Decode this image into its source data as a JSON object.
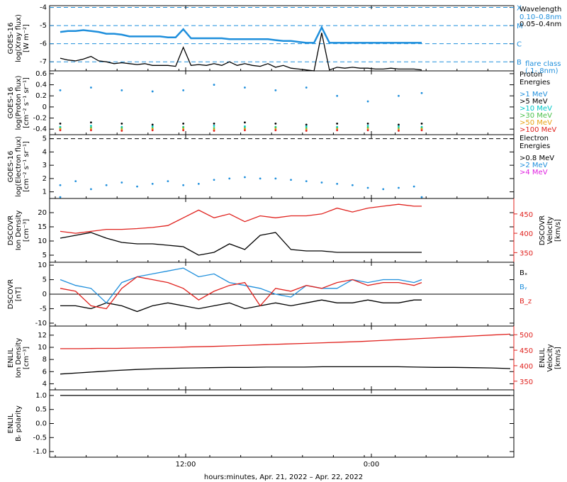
{
  "chart_data": [
    {
      "type": "line",
      "ylabel_lines": [
        "GOES-16",
        "log(Xray flux)",
        "[W m⁻²]"
      ],
      "yticks": [
        -4,
        -5,
        -6,
        -7
      ],
      "ylim": [
        -7.5,
        -3.9
      ],
      "right_axis_labels": [
        {
          "text": "X",
          "y": -4
        },
        {
          "text": "M",
          "y": -5
        },
        {
          "text": "C",
          "y": -6
        },
        {
          "text": "B",
          "y": -7
        }
      ],
      "dashed_levels": [
        -4,
        -5,
        -6,
        -7
      ],
      "legend_title": "Wavelength",
      "legend": [
        {
          "label": "0.10–0.8nm",
          "color": "#1f8fdc"
        },
        {
          "label": "0.05–0.4nm",
          "color": "#000000"
        }
      ],
      "note_lines": [
        "flare class",
        "(.1-.8nm)"
      ],
      "series": [
        {
          "name": "0.10–0.8nm",
          "color": "#1f8fdc",
          "x": [
            0,
            1,
            2,
            3,
            4,
            5,
            6,
            7,
            8,
            9,
            10,
            11,
            12,
            13,
            14,
            15,
            16,
            17,
            18,
            19,
            20,
            21,
            22,
            23,
            24,
            25,
            26,
            27,
            28,
            29,
            30,
            31,
            32,
            33,
            34,
            35,
            36,
            37,
            38,
            39,
            40,
            41,
            42,
            43,
            44,
            45,
            46,
            47
          ],
          "y": [
            -5.35,
            -5.3,
            -5.3,
            -5.25,
            -5.3,
            -5.35,
            -5.45,
            -5.45,
            -5.5,
            -5.6,
            -5.6,
            -5.6,
            -5.6,
            -5.6,
            -5.65,
            -5.65,
            -5.2,
            -5.7,
            -5.7,
            -5.7,
            -5.7,
            -5.7,
            -5.75,
            -5.75,
            -5.75,
            -5.75,
            -5.75,
            -5.75,
            -5.8,
            -5.85,
            -5.85,
            -5.9,
            -5.95,
            -5.95,
            -5.1,
            -5.95,
            -5.95,
            -5.95,
            -5.95,
            -5.95,
            -5.95,
            -5.95,
            -5.95,
            -5.95,
            -5.95,
            -5.95,
            -5.95,
            -5.95
          ]
        },
        {
          "name": "0.05–0.4nm",
          "color": "#000000",
          "x": [
            0,
            1,
            2,
            3,
            4,
            5,
            6,
            7,
            8,
            9,
            10,
            11,
            12,
            13,
            14,
            15,
            16,
            17,
            18,
            19,
            20,
            21,
            22,
            23,
            24,
            25,
            26,
            27,
            28,
            29,
            30,
            31,
            32,
            33,
            34,
            35,
            36,
            37,
            38,
            39,
            40,
            41,
            42,
            43,
            44,
            45,
            46,
            47
          ],
          "y": [
            -6.8,
            -6.9,
            -6.95,
            -6.85,
            -6.7,
            -6.95,
            -7.0,
            -7.1,
            -7.05,
            -7.1,
            -7.15,
            -7.1,
            -7.2,
            -7.2,
            -7.2,
            -7.25,
            -6.2,
            -7.2,
            -7.15,
            -7.2,
            -7.1,
            -7.2,
            -7.0,
            -7.2,
            -7.1,
            -7.2,
            -7.25,
            -7.1,
            -7.3,
            -7.2,
            -7.35,
            -7.4,
            -7.45,
            -7.5,
            -5.4,
            -7.45,
            -7.3,
            -7.35,
            -7.3,
            -7.35,
            -7.35,
            -7.4,
            -7.4,
            -7.35,
            -7.4,
            -7.4,
            -7.4,
            -7.45
          ]
        }
      ]
    },
    {
      "type": "scatter",
      "ylabel_lines": [
        "GOES-16",
        "log(Proton flux)",
        "[cm⁻² s⁻¹ sr⁻¹]"
      ],
      "yticks": [
        0.6,
        0.4,
        0.2,
        0.0,
        -0.2,
        -0.4
      ],
      "ylim": [
        -0.5,
        0.65
      ],
      "legend_title_lines": [
        "Proton",
        "Energies"
      ],
      "legend": [
        {
          "label": ">1 MeV",
          "color": "#1f8fdc"
        },
        {
          "label": ">5 MeV",
          "color": "#000000"
        },
        {
          "label": ">10 MeV",
          "color": "#00c8c8"
        },
        {
          "label": ">30 MeV",
          "color": "#4cc14c"
        },
        {
          "label": ">50 MeV",
          "color": "#e8a317"
        },
        {
          "label": ">100 MeV",
          "color": "#e0221e"
        }
      ],
      "series": [
        {
          "name": ">1 MeV",
          "color": "#1f8fdc",
          "x": [
            0,
            4,
            8,
            12,
            16,
            20,
            24,
            28,
            32,
            36,
            40,
            44,
            47
          ],
          "y": [
            0.3,
            0.35,
            0.3,
            0.28,
            0.3,
            0.4,
            0.35,
            0.3,
            0.35,
            0.2,
            0.1,
            0.2,
            0.25
          ]
        },
        {
          "name": ">5 MeV",
          "color": "#000000",
          "x": [
            0,
            4,
            8,
            12,
            16,
            20,
            24,
            28,
            32,
            36,
            40,
            44,
            47
          ],
          "y": [
            -0.3,
            -0.28,
            -0.3,
            -0.32,
            -0.3,
            -0.3,
            -0.28,
            -0.3,
            -0.32,
            -0.3,
            -0.3,
            -0.32,
            -0.3
          ]
        },
        {
          "name": ">10 MeV",
          "color": "#00c8c8",
          "x": [
            0,
            4,
            8,
            12,
            16,
            20,
            24,
            28,
            32,
            36,
            40,
            44,
            47
          ],
          "y": [
            -0.36,
            -0.34,
            -0.36,
            -0.35,
            -0.36,
            -0.34,
            -0.35,
            -0.36,
            -0.35,
            -0.36,
            -0.34,
            -0.35,
            -0.36
          ]
        },
        {
          "name": ">30 MeV",
          "color": "#4cc14c",
          "x": [
            0,
            4,
            8,
            12,
            16,
            20,
            24,
            28,
            32,
            36,
            40,
            44,
            47
          ],
          "y": [
            -0.38,
            -0.37,
            -0.38,
            -0.38,
            -0.37,
            -0.38,
            -0.38,
            -0.37,
            -0.38,
            -0.38,
            -0.37,
            -0.38,
            -0.38
          ]
        },
        {
          "name": ">50 MeV",
          "color": "#e8a317",
          "x": [
            0,
            4,
            8,
            12,
            16,
            20,
            24,
            28,
            32,
            36,
            40,
            44,
            47
          ],
          "y": [
            -0.4,
            -0.4,
            -0.41,
            -0.4,
            -0.4,
            -0.41,
            -0.4,
            -0.4,
            -0.41,
            -0.4,
            -0.4,
            -0.41,
            -0.4
          ]
        },
        {
          "name": ">100 MeV",
          "color": "#e0221e",
          "x": [
            0,
            4,
            8,
            12,
            16,
            20,
            24,
            28,
            32,
            36,
            40,
            44,
            47
          ],
          "y": [
            -0.42,
            -0.42,
            -0.43,
            -0.42,
            -0.42,
            -0.43,
            -0.42,
            -0.42,
            -0.43,
            -0.42,
            -0.42,
            -0.43,
            -0.42
          ]
        }
      ]
    },
    {
      "type": "scatter",
      "ylabel_lines": [
        "GOES-16",
        "log(Electron flux)",
        "[cm⁻² s⁻¹ sr⁻¹]"
      ],
      "yticks": [
        5,
        4,
        3,
        2,
        1
      ],
      "ylim": [
        0.5,
        5.3
      ],
      "dashed_levels": [
        5
      ],
      "legend_title_lines": [
        "Electron",
        "Energies"
      ],
      "legend": [
        {
          "label": ">0.8 MeV",
          "color": "#000000"
        },
        {
          "label": ">2 MeV",
          "color": "#1f8fdc"
        },
        {
          "label": ">4 MeV",
          "color": "#e020e0"
        }
      ],
      "series": [
        {
          "name": ">2 MeV",
          "color": "#1f8fdc",
          "x": [
            0,
            2,
            4,
            6,
            8,
            10,
            12,
            14,
            16,
            18,
            20,
            22,
            24,
            26,
            28,
            30,
            32,
            34,
            36,
            38,
            40,
            42,
            44,
            46
          ],
          "y": [
            1.5,
            1.8,
            1.2,
            1.5,
            1.7,
            1.4,
            1.6,
            1.8,
            1.5,
            1.6,
            1.9,
            2.0,
            2.1,
            2.0,
            2.0,
            1.9,
            1.8,
            1.7,
            1.6,
            1.5,
            1.3,
            1.2,
            1.3,
            1.4
          ]
        },
        {
          "name": ">2 MeV baseline",
          "color": "#1f8fdc",
          "x": [
            0,
            47
          ],
          "y": [
            0.6,
            0.6
          ]
        }
      ]
    },
    {
      "type": "line",
      "ylabel_lines": [
        "DSCOVR",
        "Ion Density",
        "[cm⁻³]"
      ],
      "yticks": [
        20,
        15,
        10,
        5
      ],
      "ylim": [
        2.5,
        25
      ],
      "right_ylabel_lines": [
        "DSCOVR",
        "Velocity",
        "[km/s]"
      ],
      "right_yticks": [
        450,
        400,
        350
      ],
      "right_ylim": [
        325,
        490
      ],
      "series": [
        {
          "name": "density",
          "color": "#000000",
          "x": [
            0,
            2,
            4,
            6,
            8,
            10,
            12,
            14,
            16,
            18,
            20,
            22,
            24,
            26,
            28,
            30,
            32,
            34,
            36,
            38,
            40,
            42,
            44,
            46,
            47
          ],
          "y": [
            11,
            12,
            13,
            11,
            9.5,
            9,
            9,
            8.5,
            8,
            5,
            6,
            9,
            7,
            12,
            13,
            7,
            6.5,
            6.5,
            6,
            6,
            6,
            6,
            6,
            6,
            6
          ]
        },
        {
          "name": "velocity",
          "color": "#e0221e",
          "axis": "right",
          "x": [
            0,
            2,
            4,
            6,
            8,
            10,
            12,
            14,
            16,
            18,
            20,
            22,
            24,
            26,
            28,
            30,
            32,
            34,
            36,
            38,
            40,
            42,
            44,
            46,
            47
          ],
          "y": [
            405,
            400,
            405,
            410,
            410,
            412,
            415,
            420,
            440,
            460,
            440,
            450,
            430,
            445,
            440,
            445,
            445,
            450,
            465,
            455,
            465,
            470,
            475,
            470,
            470
          ]
        }
      ]
    },
    {
      "type": "line",
      "ylabel_lines": [
        "DSCOVR",
        "[nT]"
      ],
      "yticks": [
        10,
        5,
        0,
        -5,
        -10
      ],
      "ylim": [
        -11,
        11
      ],
      "zero_line": true,
      "legend": [
        {
          "label": "Bₓ",
          "color": "#000000"
        },
        {
          "label": "Bᵧ",
          "color": "#1f8fdc"
        },
        {
          "label": "B_z",
          "color": "#e0221e"
        }
      ],
      "series": [
        {
          "name": "Bₓ",
          "color": "#000000",
          "x": [
            0,
            2,
            4,
            6,
            8,
            10,
            12,
            14,
            16,
            18,
            20,
            22,
            24,
            26,
            28,
            30,
            32,
            34,
            36,
            38,
            40,
            42,
            44,
            46,
            47
          ],
          "y": [
            -4,
            -4,
            -5,
            -3,
            -4,
            -6,
            -4,
            -3,
            -4,
            -5,
            -4,
            -3,
            -5,
            -4,
            -3,
            -4,
            -3,
            -2,
            -3,
            -3,
            -2,
            -3,
            -3,
            -2,
            -2
          ]
        },
        {
          "name": "Bᵧ",
          "color": "#1f8fdc",
          "x": [
            0,
            2,
            4,
            6,
            8,
            10,
            12,
            14,
            16,
            18,
            20,
            22,
            24,
            26,
            28,
            30,
            32,
            34,
            36,
            38,
            40,
            42,
            44,
            46,
            47
          ],
          "y": [
            5,
            3,
            2,
            -3,
            4,
            6,
            7,
            8,
            9,
            6,
            7,
            4,
            3,
            2,
            0,
            -1,
            3,
            2,
            2,
            5,
            4,
            5,
            5,
            4,
            5
          ]
        },
        {
          "name": "B_z",
          "color": "#e0221e",
          "x": [
            0,
            2,
            4,
            6,
            8,
            10,
            12,
            14,
            16,
            18,
            20,
            22,
            24,
            26,
            28,
            30,
            32,
            34,
            36,
            38,
            40,
            42,
            44,
            46,
            47
          ],
          "y": [
            2,
            1,
            -4,
            -5,
            2,
            6,
            5,
            4,
            2,
            -2,
            1,
            3,
            4,
            -4,
            2,
            1,
            3,
            2,
            4,
            5,
            3,
            4,
            4,
            3,
            4
          ]
        }
      ]
    },
    {
      "type": "line",
      "ylabel_lines": [
        "ENLIL",
        "Ion Density",
        "[cm⁻³]"
      ],
      "yticks": [
        12,
        10,
        8,
        6,
        4
      ],
      "ylim": [
        3,
        13.5
      ],
      "right_ylabel_lines": [
        "ENLIL",
        "Velocity",
        "[km/s]"
      ],
      "right_yticks": [
        500,
        450,
        400,
        350
      ],
      "right_ylim": [
        322,
        528
      ],
      "series": [
        {
          "name": "density",
          "color": "#000000",
          "x": [
            0,
            6,
            12,
            18,
            24,
            30,
            36,
            42,
            48,
            54,
            60,
            66,
            72,
            78,
            84,
            90,
            96,
            102,
            108,
            114,
            120,
            126,
            132,
            138,
            144
          ],
          "y": [
            5.6,
            5.8,
            6.0,
            6.2,
            6.35,
            6.45,
            6.55,
            6.6,
            6.65,
            6.7,
            6.7,
            6.75,
            6.75,
            6.75,
            6.8,
            6.8,
            6.8,
            6.8,
            6.8,
            6.75,
            6.7,
            6.7,
            6.65,
            6.6,
            6.5
          ]
        },
        {
          "name": "velocity",
          "color": "#e0221e",
          "axis": "right",
          "x": [
            0,
            6,
            12,
            18,
            24,
            30,
            36,
            42,
            48,
            54,
            60,
            66,
            72,
            78,
            84,
            90,
            96,
            102,
            108,
            114,
            120,
            126,
            132,
            138,
            144
          ],
          "y": [
            455,
            455,
            456,
            456,
            457,
            458,
            459,
            461,
            462,
            464,
            466,
            468,
            470,
            472,
            474,
            476,
            478,
            481,
            484,
            487,
            490,
            493,
            496,
            499,
            502
          ]
        }
      ]
    },
    {
      "type": "line",
      "ylabel_lines": [
        "ENLIL",
        "Bᵣ polarity"
      ],
      "yticks": [
        1.0,
        0.5,
        0.0,
        -0.5,
        -1.0
      ],
      "yticks_text": [
        "1.0",
        "0.5",
        "0.0",
        "-0.5",
        "-1.0"
      ],
      "ylim": [
        -1.2,
        1.2
      ],
      "series": [
        {
          "name": "polarity",
          "color": "#000000",
          "x": [
            0,
            144
          ],
          "y": [
            1.0,
            1.0
          ]
        }
      ]
    }
  ],
  "x_axis": {
    "tick_labels": [
      {
        "text": "12:00",
        "x": 12
      },
      {
        "text": "0:00",
        "x": 24
      }
    ],
    "xlabel": "hours:minutes, Apr. 21, 2022 – Apr. 22, 2022"
  },
  "colors": {
    "axis": "#000000",
    "dashed": "#1f8fdc",
    "red": "#e0221e",
    "blue": "#1f8fdc"
  }
}
